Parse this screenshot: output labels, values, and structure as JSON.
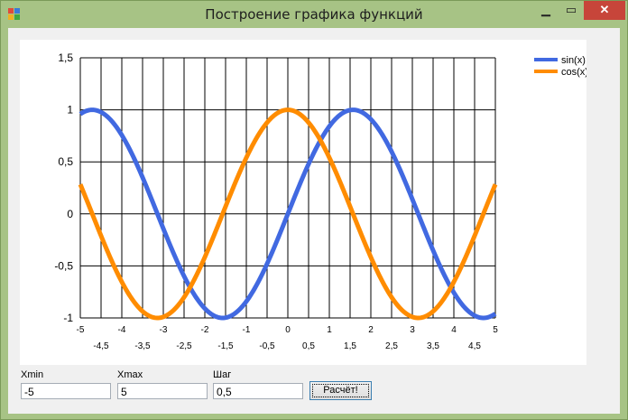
{
  "window": {
    "title": "Построение графика функций",
    "close_glyph": "✕",
    "minimize_glyph": "▁",
    "maximize_glyph": "▭"
  },
  "form": {
    "xmin_label": "Xmin",
    "xmin_value": "-5",
    "xmax_label": "Xmax",
    "xmax_value": "5",
    "step_label": "Шаг",
    "step_value": "0,5",
    "calc_button": "Расчёт!"
  },
  "chart_data": {
    "type": "line",
    "xlim": [
      -5,
      5
    ],
    "ylim": [
      -1,
      1.5
    ],
    "x_ticks_top": [
      "-5",
      "-4",
      "-3",
      "-2",
      "-1",
      "0",
      "1",
      "2",
      "3",
      "4",
      "5"
    ],
    "x_ticks_bottom": [
      "-4,5",
      "-3,5",
      "-2,5",
      "-1,5",
      "-0,5",
      "0,5",
      "1,5",
      "2,5",
      "3,5",
      "4,5"
    ],
    "y_ticks": [
      "-1",
      "-0,5",
      "0",
      "0,5",
      "1",
      "1,5"
    ],
    "grid": true,
    "legend_position": "top-right",
    "series": [
      {
        "name": "sin(x)",
        "color": "#4169e1",
        "function": "sin",
        "x": [
          -5,
          -4.5,
          -4,
          -3.5,
          -3,
          -2.5,
          -2,
          -1.5,
          -1,
          -0.5,
          0,
          0.5,
          1,
          1.5,
          2,
          2.5,
          3,
          3.5,
          4,
          4.5,
          5
        ],
        "values": [
          0.96,
          0.98,
          0.76,
          0.35,
          -0.14,
          -0.6,
          -0.91,
          -1.0,
          -0.84,
          -0.48,
          0,
          0.48,
          0.84,
          1.0,
          0.91,
          0.6,
          0.14,
          -0.35,
          -0.76,
          -0.98,
          -0.96
        ]
      },
      {
        "name": "cos(x)",
        "color": "#ff8c00",
        "function": "cos",
        "x": [
          -5,
          -4.5,
          -4,
          -3.5,
          -3,
          -2.5,
          -2,
          -1.5,
          -1,
          -0.5,
          0,
          0.5,
          1,
          1.5,
          2,
          2.5,
          3,
          3.5,
          4,
          4.5,
          5
        ],
        "values": [
          0.28,
          -0.21,
          -0.65,
          -0.94,
          -0.99,
          -0.8,
          -0.42,
          0.07,
          0.54,
          0.88,
          1.0,
          0.88,
          0.54,
          0.07,
          -0.42,
          -0.8,
          -0.99,
          -0.94,
          -0.65,
          -0.21,
          0.28
        ]
      }
    ]
  }
}
